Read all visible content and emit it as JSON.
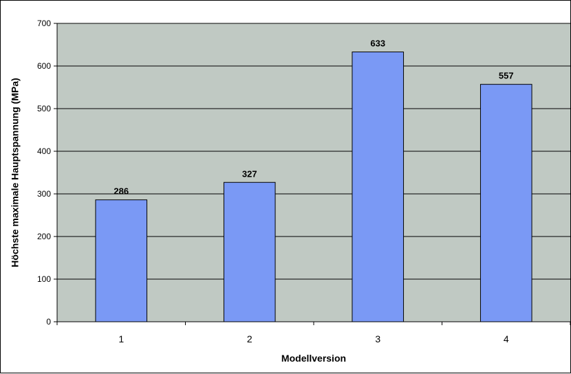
{
  "chart_data": {
    "type": "bar",
    "title": "",
    "xlabel": "Modellversion",
    "ylabel": "Höchste maximale Hauptspannung (MPa)",
    "categories": [
      "1",
      "2",
      "3",
      "4"
    ],
    "values": [
      286,
      327,
      633,
      557
    ],
    "ylim": [
      0,
      700
    ],
    "yticks": [
      0,
      100,
      200,
      300,
      400,
      500,
      600,
      700
    ],
    "grid": true,
    "legend": "none",
    "colors": {
      "plot_background": "#c0c9c3",
      "bar_fill": "#7a99f5",
      "bar_stroke": "#000000",
      "gridline": "#000000"
    }
  }
}
